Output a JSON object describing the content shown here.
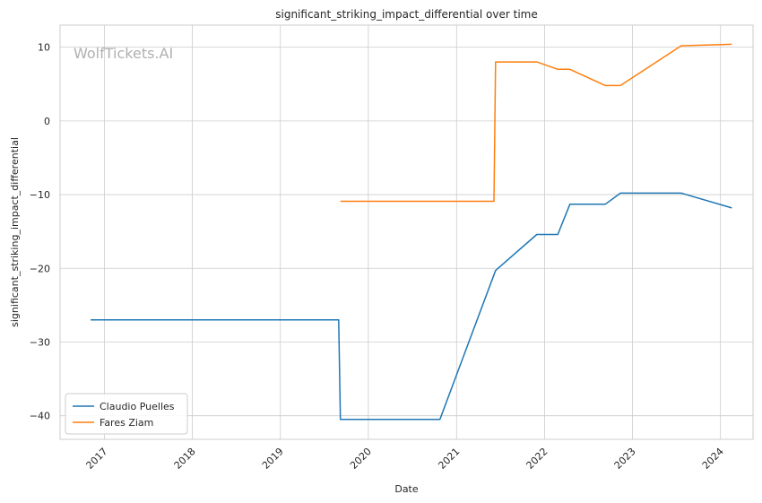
{
  "chart_data": {
    "type": "line",
    "title": "significant_striking_impact_differential over time",
    "xlabel": "Date",
    "ylabel": "significant_striking_impact_differential",
    "watermark": "WolfTickets.AI",
    "x_ticks": [
      "2017",
      "2018",
      "2019",
      "2020",
      "2021",
      "2022",
      "2023",
      "2024"
    ],
    "y_ticks": [
      10,
      0,
      -10,
      -20,
      -30,
      -40
    ],
    "xlim": [
      "2016-07-01",
      "2024-05-15"
    ],
    "ylim": [
      -43.2,
      13
    ],
    "grid": true,
    "legend_position": "lower-left",
    "series": [
      {
        "name": "Claudio Puelles",
        "color": "#1f77b4",
        "points": [
          [
            "2016-11-05",
            -27
          ],
          [
            "2019-08-31",
            -27
          ],
          [
            "2019-09-07",
            -40.5
          ],
          [
            "2020-10-24",
            -40.5
          ],
          [
            "2021-06-12",
            -20.3
          ],
          [
            "2021-11-30",
            -15.4
          ],
          [
            "2022-02-25",
            -15.4
          ],
          [
            "2022-04-16",
            -11.3
          ],
          [
            "2022-09-10",
            -11.3
          ],
          [
            "2022-11-12",
            -9.8
          ],
          [
            "2023-07-22",
            -9.8
          ],
          [
            "2024-02-17",
            -11.8
          ]
        ]
      },
      {
        "name": "Fares Ziam",
        "color": "#ff7f0e",
        "points": [
          [
            "2019-09-07",
            -10.9
          ],
          [
            "2021-06-05",
            -10.9
          ],
          [
            "2021-06-12",
            8
          ],
          [
            "2021-11-30",
            8
          ],
          [
            "2022-02-25",
            7
          ],
          [
            "2022-04-16",
            7
          ],
          [
            "2022-09-10",
            4.8
          ],
          [
            "2022-11-12",
            4.8
          ],
          [
            "2023-07-22",
            10.2
          ],
          [
            "2024-02-17",
            10.4
          ]
        ]
      }
    ]
  }
}
